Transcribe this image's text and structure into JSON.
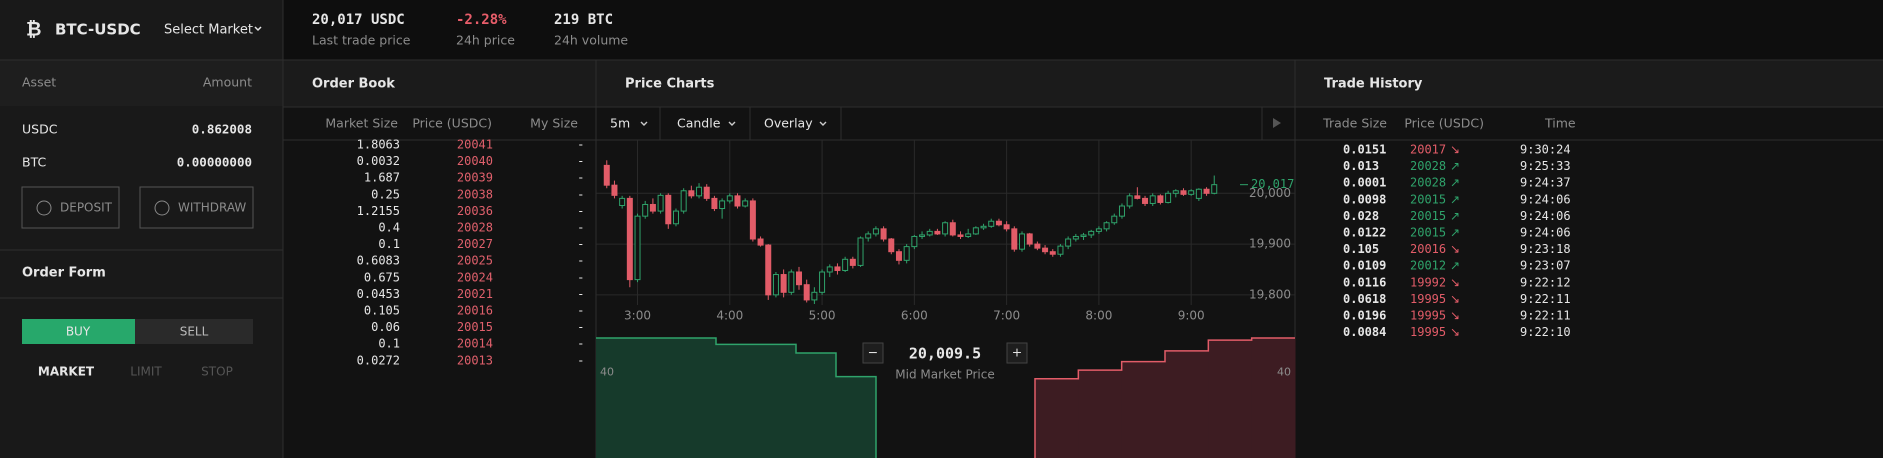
{
  "header": {
    "pair": "BTC-USDC",
    "select": "Select Market",
    "stats": [
      {
        "value": "20,017 USDC",
        "label": "Last trade price"
      },
      {
        "value": "-2.28%",
        "label": "24h price"
      },
      {
        "value": "219 BTC",
        "label": "24h volume"
      }
    ]
  },
  "wallet": {
    "columns": [
      "Asset",
      "Amount"
    ],
    "rows": [
      [
        "USDC",
        "0.862008"
      ],
      [
        "BTC",
        "0.00000000"
      ]
    ],
    "buttons": [
      "DEPOSIT",
      "WITHDRAW"
    ]
  },
  "order_form": {
    "title": "Order Form",
    "sides": [
      "BUY",
      "SELL"
    ],
    "types": [
      "MARKET",
      "LIMIT",
      "STOP"
    ]
  },
  "order_book": {
    "title": "Order Book",
    "columns": [
      "Market Size",
      "Price (USDC)",
      "My Size"
    ],
    "rows": [
      [
        "1.8063",
        "20041",
        "-"
      ],
      [
        "0.0032",
        "20040",
        "-"
      ],
      [
        "1.687",
        "20039",
        "-"
      ],
      [
        "0.25",
        "20038",
        "-"
      ],
      [
        "1.2155",
        "20036",
        "-"
      ],
      [
        "0.4",
        "20028",
        "-"
      ],
      [
        "0.1",
        "20027",
        "-"
      ],
      [
        "0.6083",
        "20025",
        "-"
      ],
      [
        "0.675",
        "20024",
        "-"
      ],
      [
        "0.0453",
        "20021",
        "-"
      ],
      [
        "0.105",
        "20016",
        "-"
      ],
      [
        "0.06",
        "20015",
        "-"
      ],
      [
        "0.1",
        "20014",
        "-"
      ],
      [
        "0.0272",
        "20013",
        "-"
      ]
    ]
  },
  "price_charts": {
    "title": "Price Charts",
    "controls": [
      "5m",
      "Candle",
      "Overlay"
    ],
    "chart_data": {
      "type": "candlestick",
      "x": [
        "2:40",
        "2:45",
        "2:50",
        "2:55",
        "3:00",
        "3:05",
        "3:10",
        "3:15",
        "3:20",
        "3:25",
        "3:30",
        "3:35",
        "3:40",
        "3:45",
        "3:50",
        "3:55",
        "4:00",
        "4:05",
        "4:10",
        "4:15",
        "4:20",
        "4:25",
        "4:30",
        "4:35",
        "4:40",
        "4:45",
        "4:50",
        "4:55",
        "5:00",
        "5:05",
        "5:10",
        "5:15",
        "5:20",
        "5:25",
        "5:30",
        "5:35",
        "5:40",
        "5:45",
        "5:50",
        "5:55",
        "6:00",
        "6:05",
        "6:10",
        "6:15",
        "6:20",
        "6:25",
        "6:30",
        "6:35",
        "6:40",
        "6:45",
        "6:50",
        "6:55",
        "7:00",
        "7:05",
        "7:10",
        "7:15",
        "7:20",
        "7:25",
        "7:30",
        "7:35",
        "7:40",
        "7:45",
        "7:50",
        "7:55",
        "8:00",
        "8:05",
        "8:10",
        "8:15",
        "8:20",
        "8:25",
        "8:30",
        "8:35",
        "8:40",
        "8:45",
        "8:50",
        "8:55",
        "9:00",
        "9:05",
        "9:10",
        "9:15"
      ],
      "ohlc": [
        [
          20055,
          20065,
          20010,
          20016
        ],
        [
          20016,
          20025,
          19990,
          19996
        ],
        [
          19976,
          19995,
          19970,
          19990
        ],
        [
          19990,
          19995,
          19815,
          19830
        ],
        [
          19830,
          19960,
          19825,
          19955
        ],
        [
          19955,
          19985,
          19950,
          19978
        ],
        [
          19978,
          19990,
          19960,
          19965
        ],
        [
          19965,
          20000,
          19960,
          19996
        ],
        [
          19996,
          20000,
          19930,
          19940
        ],
        [
          19940,
          19970,
          19935,
          19965
        ],
        [
          19965,
          20010,
          19960,
          20005
        ],
        [
          20005,
          20015,
          19990,
          19995
        ],
        [
          19995,
          20020,
          19990,
          20012
        ],
        [
          20012,
          20018,
          19985,
          19990
        ],
        [
          19990,
          19995,
          19965,
          19970
        ],
        [
          19970,
          19990,
          19950,
          19985
        ],
        [
          19985,
          20000,
          19980,
          19995
        ],
        [
          19995,
          20000,
          19970,
          19975
        ],
        [
          19975,
          19990,
          19972,
          19985
        ],
        [
          19985,
          19990,
          19905,
          19910
        ],
        [
          19910,
          19915,
          19895,
          19898
        ],
        [
          19898,
          19900,
          19790,
          19800
        ],
        [
          19800,
          19845,
          19795,
          19840
        ],
        [
          19840,
          19850,
          19795,
          19805
        ],
        [
          19805,
          19850,
          19800,
          19845
        ],
        [
          19845,
          19855,
          19810,
          19820
        ],
        [
          19820,
          19830,
          19785,
          19790
        ],
        [
          19790,
          19815,
          19782,
          19805
        ],
        [
          19805,
          19850,
          19800,
          19845
        ],
        [
          19845,
          19860,
          19835,
          19855
        ],
        [
          19855,
          19862,
          19840,
          19848
        ],
        [
          19848,
          19875,
          19845,
          19870
        ],
        [
          19870,
          19875,
          19852,
          19858
        ],
        [
          19858,
          19915,
          19855,
          19912
        ],
        [
          19912,
          19925,
          19905,
          19920
        ],
        [
          19920,
          19935,
          19915,
          19930
        ],
        [
          19930,
          19935,
          19905,
          19910
        ],
        [
          19910,
          19912,
          19880,
          19885
        ],
        [
          19885,
          19890,
          19860,
          19868
        ],
        [
          19868,
          19900,
          19862,
          19895
        ],
        [
          19895,
          19918,
          19890,
          19915
        ],
        [
          19915,
          19925,
          19910,
          19918
        ],
        [
          19918,
          19930,
          19915,
          19925
        ],
        [
          19925,
          19930,
          19918,
          19920
        ],
        [
          19920,
          19945,
          19915,
          19942
        ],
        [
          19942,
          19948,
          19915,
          19918
        ],
        [
          19918,
          19925,
          19910,
          19915
        ],
        [
          19915,
          19930,
          19912,
          19920
        ],
        [
          19920,
          19935,
          19918,
          19932
        ],
        [
          19932,
          19940,
          19928,
          19935
        ],
        [
          19935,
          19950,
          19932,
          19945
        ],
        [
          19945,
          19950,
          19935,
          19938
        ],
        [
          19938,
          19945,
          19925,
          19930
        ],
        [
          19930,
          19935,
          19885,
          19890
        ],
        [
          19890,
          19925,
          19885,
          19920
        ],
        [
          19920,
          19922,
          19895,
          19900
        ],
        [
          19900,
          19905,
          19888,
          19892
        ],
        [
          19892,
          19898,
          19880,
          19885
        ],
        [
          19885,
          19890,
          19875,
          19880
        ],
        [
          19880,
          19900,
          19875,
          19896
        ],
        [
          19896,
          19915,
          19890,
          19910
        ],
        [
          19910,
          19920,
          19905,
          19915
        ],
        [
          19915,
          19922,
          19908,
          19918
        ],
        [
          19918,
          19928,
          19912,
          19925
        ],
        [
          19925,
          19935,
          19920,
          19930
        ],
        [
          19930,
          19945,
          19925,
          19942
        ],
        [
          19942,
          19960,
          19938,
          19955
        ],
        [
          19955,
          19980,
          19950,
          19975
        ],
        [
          19975,
          20000,
          19970,
          19995
        ],
        [
          19995,
          20012,
          19988,
          19990
        ],
        [
          19990,
          19995,
          19975,
          19980
        ],
        [
          19980,
          20000,
          19975,
          19995
        ],
        [
          19995,
          19998,
          19978,
          19982
        ],
        [
          19982,
          20005,
          19980,
          20000
        ],
        [
          20000,
          20008,
          19992,
          20005
        ],
        [
          20005,
          20010,
          19995,
          19998
        ],
        [
          19998,
          20008,
          19995,
          20005
        ],
        [
          19990,
          20010,
          19985,
          20008
        ],
        [
          20008,
          20012,
          19995,
          20000
        ],
        [
          20000,
          20035,
          19998,
          20017
        ]
      ],
      "up_color": "#2fa36b",
      "down_color": "#e25c68",
      "xlim": [
        "2:33",
        "9:35"
      ],
      "xticks": [
        "3:00",
        "4:00",
        "5:00",
        "6:00",
        "7:00",
        "8:00",
        "9:00"
      ],
      "ylim": [
        19780,
        20105
      ],
      "yticks": [
        {
          "value": 19800,
          "label": "19,800"
        },
        {
          "value": 19900,
          "label": "19,900"
        },
        {
          "value": 20000,
          "label": "20,000"
        }
      ],
      "last_price": {
        "value": 20017,
        "label": "20,017"
      },
      "grid": true
    },
    "depth": {
      "bids": [
        56,
        56,
        56,
        53,
        53,
        49,
        38
      ],
      "asks": [
        37,
        41,
        45,
        50,
        55,
        56
      ],
      "ylim": [
        0,
        56
      ],
      "ytick": 40,
      "mid_price": "20,009.5",
      "mid_label": "Mid Market Price",
      "minus": "−",
      "plus": "+"
    }
  },
  "trade_history": {
    "title": "Trade History",
    "columns": [
      "Trade Size",
      "Price (USDC)",
      "Time"
    ],
    "rows": [
      [
        "0.0151",
        "20017",
        "↘",
        "9:30:24"
      ],
      [
        "0.013",
        "20028",
        "↗",
        "9:25:33"
      ],
      [
        "0.0001",
        "20028",
        "↗",
        "9:24:37"
      ],
      [
        "0.0098",
        "20015",
        "↗",
        "9:24:06"
      ],
      [
        "0.028",
        "20015",
        "↗",
        "9:24:06"
      ],
      [
        "0.0122",
        "20015",
        "↗",
        "9:24:06"
      ],
      [
        "0.105",
        "20016",
        "↘",
        "9:23:18"
      ],
      [
        "0.0109",
        "20012",
        "↗",
        "9:23:07"
      ],
      [
        "0.0116",
        "19992",
        "↘",
        "9:22:12"
      ],
      [
        "0.0618",
        "19995",
        "↘",
        "9:22:11"
      ],
      [
        "0.0196",
        "19995",
        "↘",
        "9:22:11"
      ],
      [
        "0.0084",
        "19995",
        "↘",
        "9:22:10"
      ]
    ]
  }
}
